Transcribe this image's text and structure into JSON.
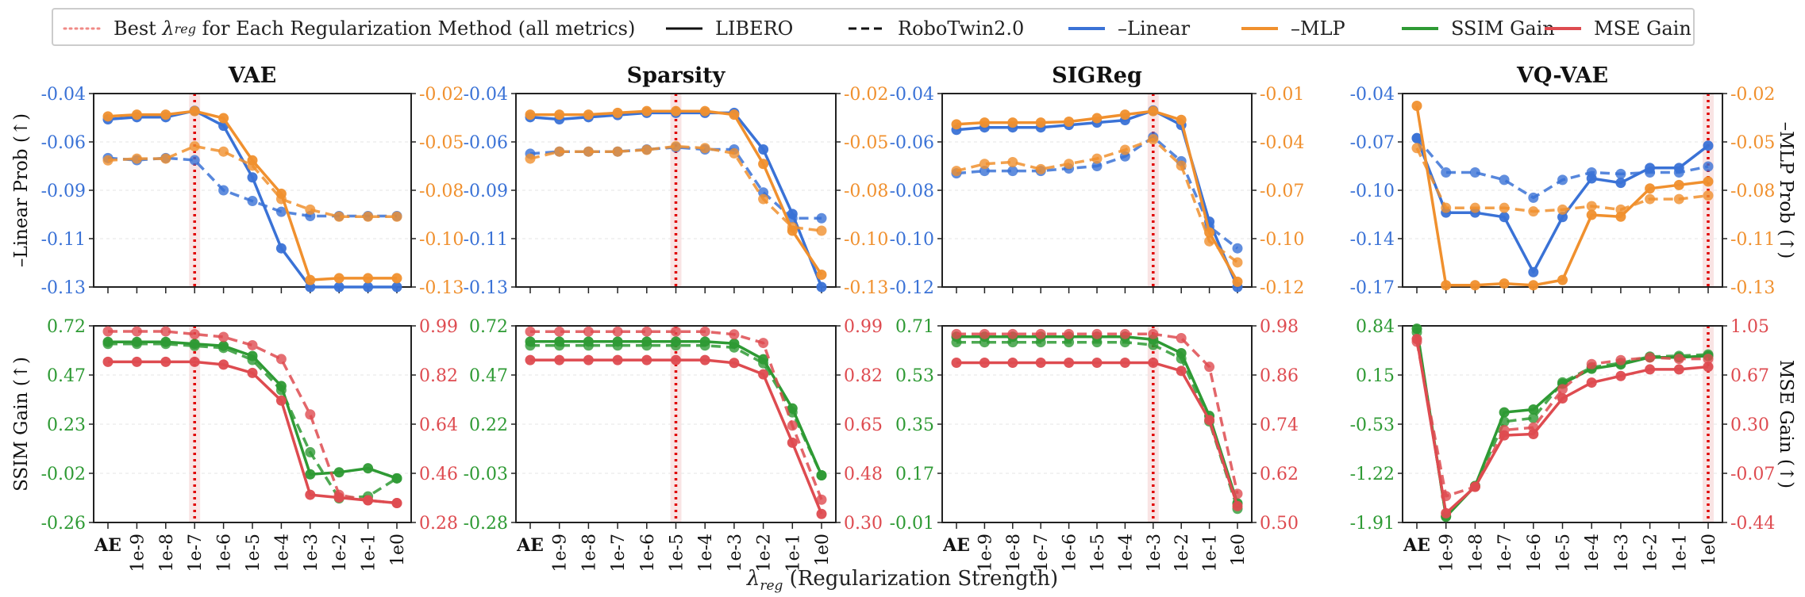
{
  "legend": {
    "best_lambda_prefix": "Best ",
    "best_lambda_symbol": "λ",
    "best_lambda_sub": "reg",
    "best_lambda_suffix": " for Each Regularization Method (all metrics)",
    "libero": "LIBERO",
    "robotwin": "RoboTwin2.0",
    "linear": "–Linear",
    "mlp": "–MLP",
    "ssim": "SSIM Gain",
    "mse": "MSE Gain"
  },
  "xlabel": {
    "symbol": "λ",
    "sub": "reg",
    "rest": " (Regularization Strength)"
  },
  "ylabels": {
    "top_left": "–Linear Prob (↑)",
    "top_right": "–MLP Prob (↑)",
    "bottom_left": "SSIM Gain (↑)",
    "bottom_right": "MSE Gain (↑)"
  },
  "colors": {
    "linear": "#3a72d6",
    "mlp": "#f0902e",
    "ssim": "#2e9a34",
    "mse": "#de4b50",
    "best": "#e00000"
  },
  "chart_data": {
    "type": "line",
    "x_ticks": [
      "AE",
      "1e-9",
      "1e-8",
      "1e-7",
      "1e-6",
      "1e-5",
      "1e-4",
      "1e-3",
      "1e-2",
      "1e-1",
      "1e0"
    ],
    "panels": [
      {
        "title": "VAE",
        "best_lambda": "1e-7",
        "top": {
          "left_ticks": [
            "-0.04",
            "-0.06",
            "-0.09",
            "-0.11",
            "-0.13"
          ],
          "right_ticks": [
            "-0.02",
            "-0.05",
            "-0.08",
            "-0.10",
            "-0.13"
          ],
          "series": [
            {
              "metric": "linear",
              "dataset": "LIBERO",
              "values": [
                -0.052,
                -0.051,
                -0.051,
                -0.048,
                -0.055,
                -0.079,
                -0.112,
                -0.13,
                -0.13,
                -0.13,
                -0.13
              ]
            },
            {
              "metric": "linear",
              "dataset": "RoboTwin2.0",
              "values": [
                -0.07,
                -0.071,
                -0.07,
                -0.071,
                -0.085,
                -0.09,
                -0.095,
                -0.097,
                -0.097,
                -0.097,
                -0.097
              ]
            },
            {
              "metric": "mlp",
              "dataset": "LIBERO",
              "values": [
                -0.033,
                -0.032,
                -0.032,
                -0.03,
                -0.034,
                -0.058,
                -0.077,
                -0.126,
                -0.125,
                -0.125,
                -0.125
              ]
            },
            {
              "metric": "mlp",
              "dataset": "RoboTwin2.0",
              "values": [
                -0.058,
                -0.057,
                -0.057,
                -0.05,
                -0.053,
                -0.061,
                -0.08,
                -0.086,
                -0.09,
                -0.09,
                -0.09
              ]
            }
          ]
        },
        "bottom": {
          "left_ticks": [
            "0.72",
            "0.47",
            "0.23",
            "-0.02",
            "-0.26"
          ],
          "right_ticks": [
            "0.99",
            "0.82",
            "0.64",
            "0.46",
            "0.28"
          ],
          "series": [
            {
              "metric": "ssim",
              "dataset": "LIBERO",
              "values": [
                0.64,
                0.64,
                0.64,
                0.63,
                0.62,
                0.57,
                0.42,
                -0.02,
                -0.01,
                0.01,
                -0.04
              ]
            },
            {
              "metric": "ssim",
              "dataset": "RoboTwin2.0",
              "values": [
                0.63,
                0.63,
                0.63,
                0.62,
                0.61,
                0.55,
                0.4,
                0.09,
                -0.14,
                -0.13,
                -0.04
              ]
            },
            {
              "metric": "mse",
              "dataset": "LIBERO",
              "values": [
                0.86,
                0.86,
                0.86,
                0.86,
                0.85,
                0.82,
                0.72,
                0.38,
                0.37,
                0.36,
                0.35
              ]
            },
            {
              "metric": "mse",
              "dataset": "RoboTwin2.0",
              "values": [
                0.97,
                0.97,
                0.97,
                0.96,
                0.95,
                0.92,
                0.87,
                0.67,
                0.38,
                0.36,
                0.35
              ]
            }
          ]
        }
      },
      {
        "title": "Sparsity",
        "best_lambda": "1e-5",
        "top": {
          "left_ticks": [
            "-0.04",
            "-0.06",
            "-0.09",
            "-0.11",
            "-0.13"
          ],
          "right_ticks": [
            "-0.02",
            "-0.05",
            "-0.08",
            "-0.10",
            "-0.13"
          ],
          "series": [
            {
              "metric": "linear",
              "dataset": "LIBERO",
              "values": [
                -0.051,
                -0.052,
                -0.051,
                -0.05,
                -0.049,
                -0.049,
                -0.049,
                -0.049,
                -0.066,
                -0.096,
                -0.13
              ]
            },
            {
              "metric": "linear",
              "dataset": "RoboTwin2.0",
              "values": [
                -0.068,
                -0.067,
                -0.067,
                -0.067,
                -0.066,
                -0.065,
                -0.066,
                -0.066,
                -0.086,
                -0.098,
                -0.098
              ]
            },
            {
              "metric": "mlp",
              "dataset": "LIBERO",
              "values": [
                -0.032,
                -0.032,
                -0.032,
                -0.031,
                -0.03,
                -0.03,
                -0.03,
                -0.032,
                -0.06,
                -0.098,
                -0.123
              ]
            },
            {
              "metric": "mlp",
              "dataset": "RoboTwin2.0",
              "values": [
                -0.057,
                -0.053,
                -0.053,
                -0.053,
                -0.052,
                -0.05,
                -0.051,
                -0.054,
                -0.08,
                -0.096,
                -0.098
              ]
            }
          ]
        },
        "bottom": {
          "left_ticks": [
            "0.72",
            "0.47",
            "0.22",
            "-0.03",
            "-0.28"
          ],
          "right_ticks": [
            "0.99",
            "0.82",
            "0.65",
            "0.48",
            "0.30"
          ],
          "series": [
            {
              "metric": "ssim",
              "dataset": "LIBERO",
              "values": [
                0.64,
                0.64,
                0.64,
                0.64,
                0.64,
                0.64,
                0.64,
                0.63,
                0.55,
                0.3,
                -0.04
              ]
            },
            {
              "metric": "ssim",
              "dataset": "RoboTwin2.0",
              "values": [
                0.62,
                0.62,
                0.62,
                0.62,
                0.62,
                0.62,
                0.62,
                0.61,
                0.53,
                0.28,
                -0.04
              ]
            },
            {
              "metric": "mse",
              "dataset": "LIBERO",
              "values": [
                0.87,
                0.87,
                0.87,
                0.87,
                0.87,
                0.87,
                0.87,
                0.86,
                0.82,
                0.58,
                0.33
              ]
            },
            {
              "metric": "mse",
              "dataset": "RoboTwin2.0",
              "values": [
                0.97,
                0.97,
                0.97,
                0.97,
                0.97,
                0.97,
                0.97,
                0.96,
                0.93,
                0.64,
                0.38
              ]
            }
          ]
        }
      },
      {
        "title": "SIGReg",
        "best_lambda": "1e-3",
        "top": {
          "left_ticks": [
            "-0.04",
            "-0.06",
            "-0.08",
            "-0.10",
            "-0.12"
          ],
          "right_ticks": [
            "-0.01",
            "-0.04",
            "-0.07",
            "-0.10",
            "-0.12"
          ],
          "series": [
            {
              "metric": "linear",
              "dataset": "LIBERO",
              "values": [
                -0.055,
                -0.054,
                -0.054,
                -0.054,
                -0.053,
                -0.052,
                -0.051,
                -0.047,
                -0.053,
                -0.093,
                -0.12
              ]
            },
            {
              "metric": "linear",
              "dataset": "RoboTwin2.0",
              "values": [
                -0.073,
                -0.072,
                -0.072,
                -0.072,
                -0.071,
                -0.07,
                -0.066,
                -0.058,
                -0.068,
                -0.095,
                -0.104
              ]
            },
            {
              "metric": "mlp",
              "dataset": "LIBERO",
              "values": [
                -0.0275,
                -0.0265,
                -0.0265,
                -0.0265,
                -0.026,
                -0.024,
                -0.022,
                -0.02,
                -0.025,
                -0.089,
                -0.117
              ]
            },
            {
              "metric": "mlp",
              "dataset": "RoboTwin2.0",
              "values": [
                -0.054,
                -0.05,
                -0.049,
                -0.053,
                -0.05,
                -0.047,
                -0.042,
                -0.036,
                -0.051,
                -0.094,
                -0.106
              ]
            }
          ]
        },
        "bottom": {
          "left_ticks": [
            "0.71",
            "0.53",
            "0.35",
            "0.17",
            "-0.01"
          ],
          "right_ticks": [
            "0.98",
            "0.86",
            "0.74",
            "0.62",
            "0.50"
          ],
          "series": [
            {
              "metric": "ssim",
              "dataset": "LIBERO",
              "values": [
                0.67,
                0.67,
                0.67,
                0.67,
                0.67,
                0.67,
                0.67,
                0.66,
                0.61,
                0.38,
                0.06
              ]
            },
            {
              "metric": "ssim",
              "dataset": "RoboTwin2.0",
              "values": [
                0.65,
                0.65,
                0.65,
                0.65,
                0.65,
                0.65,
                0.65,
                0.64,
                0.59,
                0.36,
                0.04
              ]
            },
            {
              "metric": "mse",
              "dataset": "LIBERO",
              "values": [
                0.89,
                0.89,
                0.89,
                0.89,
                0.89,
                0.89,
                0.89,
                0.89,
                0.87,
                0.75,
                0.54
              ]
            },
            {
              "metric": "mse",
              "dataset": "RoboTwin2.0",
              "values": [
                0.96,
                0.96,
                0.96,
                0.96,
                0.96,
                0.96,
                0.96,
                0.96,
                0.95,
                0.88,
                0.57
              ]
            }
          ]
        }
      },
      {
        "title": "VQ-VAE",
        "best_lambda": "1e0",
        "top": {
          "left_ticks": [
            "-0.04",
            "-0.07",
            "-0.10",
            "-0.14",
            "-0.17"
          ],
          "right_ticks": [
            "-0.02",
            "-0.05",
            "-0.08",
            "-0.11",
            "-0.13"
          ],
          "series": [
            {
              "metric": "linear",
              "dataset": "LIBERO",
              "values": [
                -0.07,
                -0.12,
                -0.12,
                -0.123,
                -0.16,
                -0.123,
                -0.097,
                -0.1,
                -0.09,
                -0.09,
                -0.075
              ]
            },
            {
              "metric": "linear",
              "dataset": "RoboTwin2.0",
              "values": [
                -0.07,
                -0.093,
                -0.093,
                -0.098,
                -0.11,
                -0.098,
                -0.093,
                -0.094,
                -0.093,
                -0.093,
                -0.089
              ]
            },
            {
              "metric": "mlp",
              "dataset": "LIBERO",
              "values": [
                -0.027,
                -0.129,
                -0.129,
                -0.128,
                -0.129,
                -0.126,
                -0.089,
                -0.09,
                -0.074,
                -0.072,
                -0.07
              ]
            },
            {
              "metric": "mlp",
              "dataset": "RoboTwin2.0",
              "values": [
                -0.051,
                -0.085,
                -0.085,
                -0.085,
                -0.087,
                -0.086,
                -0.084,
                -0.086,
                -0.08,
                -0.08,
                -0.078
              ]
            }
          ]
        },
        "bottom": {
          "left_ticks": [
            "0.84",
            "0.15",
            "-0.53",
            "-1.22",
            "-1.91"
          ],
          "right_ticks": [
            "1.05",
            "0.67",
            "0.30",
            "-0.07",
            "-0.44"
          ],
          "series": [
            {
              "metric": "ssim",
              "dataset": "LIBERO",
              "values": [
                0.8,
                -1.83,
                -1.4,
                -0.37,
                -0.33,
                0.03,
                0.24,
                0.3,
                0.4,
                0.4,
                0.42
              ]
            },
            {
              "metric": "ssim",
              "dataset": "RoboTwin2.0",
              "values": [
                0.75,
                -1.82,
                -1.4,
                -0.5,
                -0.45,
                0.05,
                0.26,
                0.32,
                0.41,
                0.42,
                0.44
              ]
            },
            {
              "metric": "mse",
              "dataset": "LIBERO",
              "values": [
                0.95,
                -0.37,
                -0.17,
                0.22,
                0.23,
                0.5,
                0.62,
                0.67,
                0.72,
                0.72,
                0.74
              ]
            },
            {
              "metric": "mse",
              "dataset": "RoboTwin2.0",
              "values": [
                0.93,
                -0.24,
                -0.17,
                0.26,
                0.28,
                0.57,
                0.76,
                0.79,
                0.81,
                0.8,
                0.8
              ]
            }
          ]
        }
      }
    ]
  }
}
